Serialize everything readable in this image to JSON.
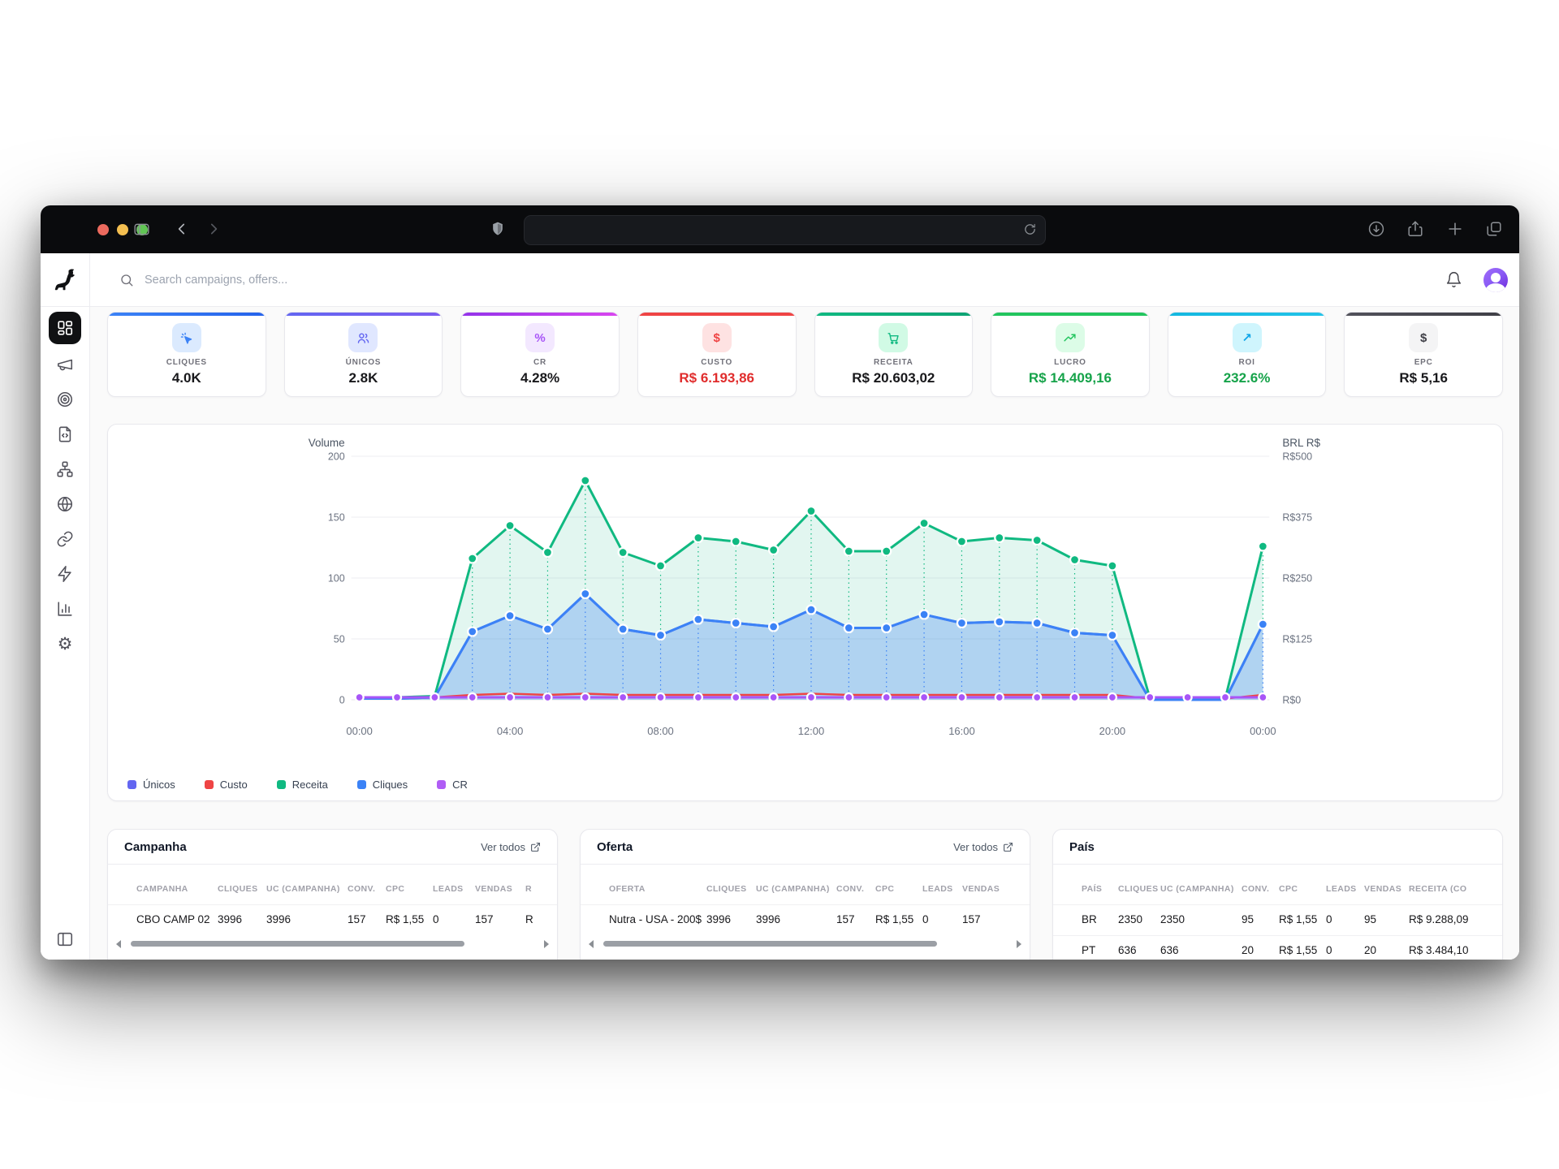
{
  "window_controls": [
    "#ec6a5e",
    "#f4bf50",
    "#61c554"
  ],
  "header": {
    "search_placeholder": "Search campaigns, offers..."
  },
  "kpi": {
    "cards": [
      {
        "label": "CLIQUES",
        "value": "4.0K",
        "accent": "#3b82f6",
        "accent2": "#2563eb",
        "tile_bg": "#dbeafe",
        "icon_color": "#3b82f6",
        "value_color": "#18181b",
        "icon": "cursor-click-icon"
      },
      {
        "label": "ÚNICOS",
        "value": "2.8K",
        "accent": "#6366f1",
        "accent2": "#7c5cf0",
        "tile_bg": "#e0e7ff",
        "icon_color": "#6366f1",
        "value_color": "#18181b",
        "icon": "users-icon"
      },
      {
        "label": "CR",
        "value": "4.28%",
        "accent": "#9333ea",
        "accent2": "#d946ef",
        "tile_bg": "#f3e8ff",
        "icon_color": "#a855f7",
        "value_color": "#18181b",
        "icon": "percent-icon"
      },
      {
        "label": "CUSTO",
        "value": "R$ 6.193,86",
        "accent": "#ef4444",
        "accent2": "#ef4444",
        "tile_bg": "#fee2e2",
        "icon_color": "#ef4444",
        "value_color": "#e02d2d",
        "icon": "dollar-icon"
      },
      {
        "label": "RECEITA",
        "value": "R$ 20.603,02",
        "accent": "#10b981",
        "accent2": "#0ea373",
        "tile_bg": "#d1fae5",
        "icon_color": "#10b981",
        "value_color": "#18181b",
        "icon": "cart-icon"
      },
      {
        "label": "LUCRO",
        "value": "R$ 14.409,16",
        "accent": "#22c55e",
        "accent2": "#22c55e",
        "tile_bg": "#dcfce7",
        "icon_color": "#22c55e",
        "value_color": "#16a34a",
        "icon": "trending-up-icon"
      },
      {
        "label": "ROI",
        "value": "232.6%",
        "accent": "#14b8e0",
        "accent2": "#22c3e8",
        "tile_bg": "#cff5fd",
        "icon_color": "#0ea5e9",
        "value_color": "#16a34a",
        "icon": "arrow-up-right-icon"
      },
      {
        "label": "EPC",
        "value": "R$ 5,16",
        "accent": "#52525b",
        "accent2": "#3f3f46",
        "tile_bg": "#f4f4f5",
        "icon_color": "#3f3f46",
        "value_color": "#18181b",
        "icon": "dollar-icon"
      }
    ]
  },
  "chart_data": {
    "type": "area",
    "x_tick_hours": [
      0,
      4,
      8,
      12,
      16,
      20,
      24
    ],
    "x_tick_labels": [
      "00:00",
      "04:00",
      "08:00",
      "12:00",
      "16:00",
      "20:00",
      "00:00"
    ],
    "left_axis": {
      "label": "Volume",
      "ticks": [
        0,
        50,
        100,
        150,
        200
      ],
      "max": 200
    },
    "right_axis": {
      "label": "BRL R$",
      "ticks": [
        "R$0",
        "R$125",
        "R$250",
        "R$375",
        "R$500"
      ]
    },
    "grid": true,
    "legend_position": "bottom-left",
    "series": [
      {
        "name": "Únicos",
        "color": "#6366f1",
        "dots": false,
        "area": false,
        "values": [
          1,
          1,
          2,
          56,
          69,
          58,
          87,
          58,
          53,
          66,
          63,
          60,
          74,
          59,
          59,
          70,
          63,
          64,
          63,
          55,
          53,
          0,
          0,
          0,
          62
        ]
      },
      {
        "name": "Custo",
        "color": "#ef4444",
        "dots": false,
        "area": false,
        "values": [
          1,
          1,
          2,
          4,
          5,
          4,
          5,
          4,
          4,
          4,
          4,
          4,
          5,
          4,
          4,
          4,
          4,
          4,
          4,
          4,
          4,
          1,
          1,
          1,
          4
        ]
      },
      {
        "name": "Receita",
        "color": "#10b981",
        "dots": true,
        "area": true,
        "area_opacity": 0.12,
        "values": [
          2,
          2,
          3,
          116,
          143,
          121,
          180,
          121,
          110,
          133,
          130,
          123,
          155,
          122,
          122,
          145,
          130,
          133,
          131,
          115,
          110,
          1,
          1,
          1,
          126
        ]
      },
      {
        "name": "Cliques",
        "color": "#3b82f6",
        "dots": true,
        "area": true,
        "area_opacity": 0.3,
        "values": [
          1,
          1,
          2,
          56,
          69,
          58,
          87,
          58,
          53,
          66,
          63,
          60,
          74,
          59,
          59,
          70,
          63,
          64,
          63,
          55,
          53,
          0,
          0,
          0,
          62
        ]
      },
      {
        "name": "CR",
        "color": "#a855f7",
        "dots": true,
        "area": false,
        "values": [
          2,
          2,
          2,
          2,
          2,
          2,
          2,
          2,
          2,
          2,
          2,
          2,
          2,
          2,
          2,
          2,
          2,
          2,
          2,
          2,
          2,
          2,
          2,
          2,
          2
        ]
      }
    ],
    "legend": [
      {
        "label": "Únicos",
        "color": "#6366f1"
      },
      {
        "label": "Custo",
        "color": "#ef4444"
      },
      {
        "label": "Receita",
        "color": "#10b981"
      },
      {
        "label": "Cliques",
        "color": "#3b82f6"
      },
      {
        "label": "CR",
        "color": "#b05df5"
      }
    ]
  },
  "tables": [
    {
      "title": "Campanha",
      "link_label": "Ver todos",
      "scrollbar": true,
      "headers": [
        "CAMPANHA",
        "CLIQUES",
        "UC (CAMPANHA)",
        "CONV.",
        "CPC",
        "LEADS",
        "VENDAS",
        "R"
      ],
      "rows": [
        [
          "CBO CAMP 02",
          "3996",
          "3996",
          "157",
          "R$ 1,55",
          "0",
          "157",
          "R"
        ]
      ]
    },
    {
      "title": "Oferta",
      "link_label": "Ver todos",
      "scrollbar": true,
      "headers": [
        "OFERTA",
        "CLIQUES",
        "UC (CAMPANHA)",
        "CONV.",
        "CPC",
        "LEADS",
        "VENDAS"
      ],
      "rows": [
        [
          "Nutra - USA - 200$",
          "3996",
          "3996",
          "157",
          "R$ 1,55",
          "0",
          "157"
        ]
      ]
    },
    {
      "title": "País",
      "link_label": "",
      "scrollbar": false,
      "headers": [
        "PAÍS",
        "CLIQUES",
        "UC (CAMPANHA)",
        "CONV.",
        "CPC",
        "LEADS",
        "VENDAS",
        "RECEITA (CO"
      ],
      "rows": [
        [
          "BR",
          "2350",
          "2350",
          "95",
          "R$ 1,55",
          "0",
          "95",
          "R$ 9.288,09"
        ],
        [
          "PT",
          "636",
          "636",
          "20",
          "R$ 1,55",
          "0",
          "20",
          "R$ 3.484,10"
        ]
      ]
    }
  ]
}
